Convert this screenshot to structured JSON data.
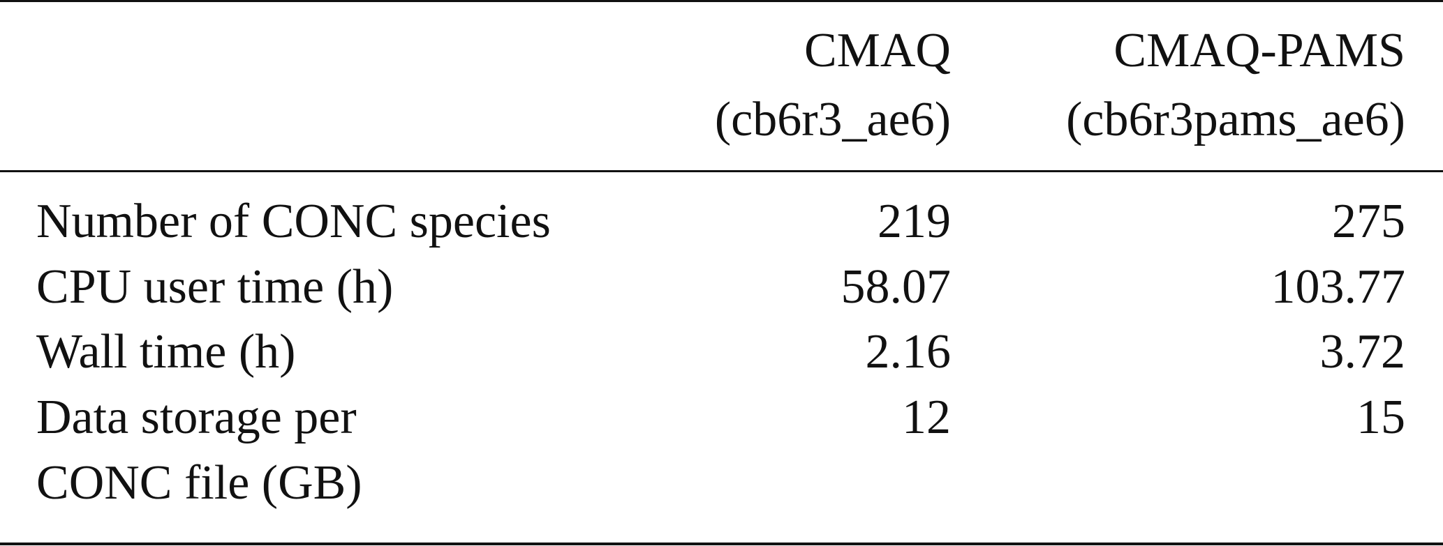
{
  "table": {
    "headers": [
      {
        "name": "CMAQ",
        "mechanism": "(cb6r3_ae6)"
      },
      {
        "name": "CMAQ-PAMS",
        "mechanism": "(cb6r3pams_ae6)"
      }
    ],
    "rows": [
      {
        "label_line1": "Number of CONC species",
        "label_line2": "",
        "cmaq": "219",
        "cmaq_pams": "275"
      },
      {
        "label_line1": "CPU user time (h)",
        "label_line2": "",
        "cmaq": "58.07",
        "cmaq_pams": "103.77"
      },
      {
        "label_line1": "Wall time (h)",
        "label_line2": "",
        "cmaq": "2.16",
        "cmaq_pams": "3.72"
      },
      {
        "label_line1": "Data storage per",
        "label_line2": "CONC file (GB)",
        "cmaq": "12",
        "cmaq_pams": "15"
      }
    ]
  }
}
